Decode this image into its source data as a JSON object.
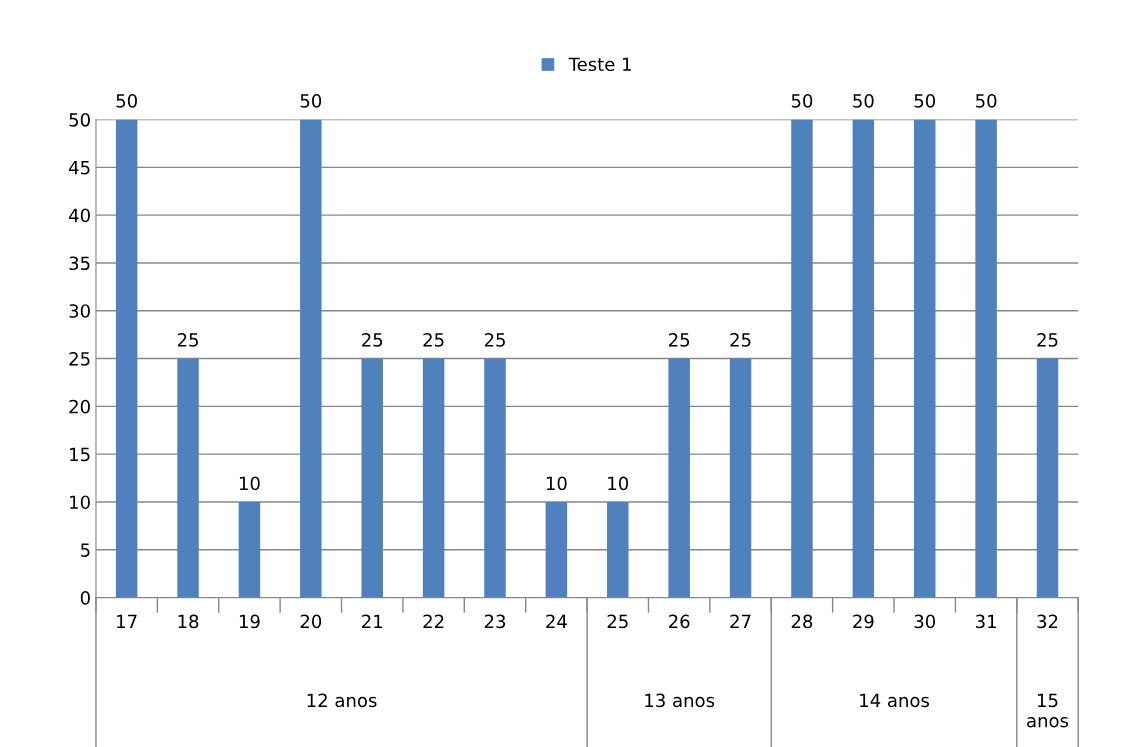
{
  "chart_data": {
    "type": "bar",
    "categories": [
      "17",
      "18",
      "19",
      "20",
      "21",
      "22",
      "23",
      "24",
      "25",
      "26",
      "27",
      "28",
      "29",
      "30",
      "31",
      "32"
    ],
    "series": [
      {
        "name": "Teste 1",
        "color": "#4f81bd",
        "values": [
          50,
          25,
          10,
          50,
          25,
          25,
          25,
          10,
          10,
          25,
          25,
          50,
          50,
          50,
          50,
          25
        ]
      }
    ],
    "ylim": [
      0,
      50
    ],
    "yticks": [
      0,
      5,
      10,
      15,
      20,
      25,
      30,
      35,
      40,
      45,
      50
    ],
    "grid": "y",
    "legend": "top",
    "data_labels": true,
    "annotations": [
      "12 anos",
      "13 anos",
      "14 anos",
      "15 anos"
    ]
  }
}
